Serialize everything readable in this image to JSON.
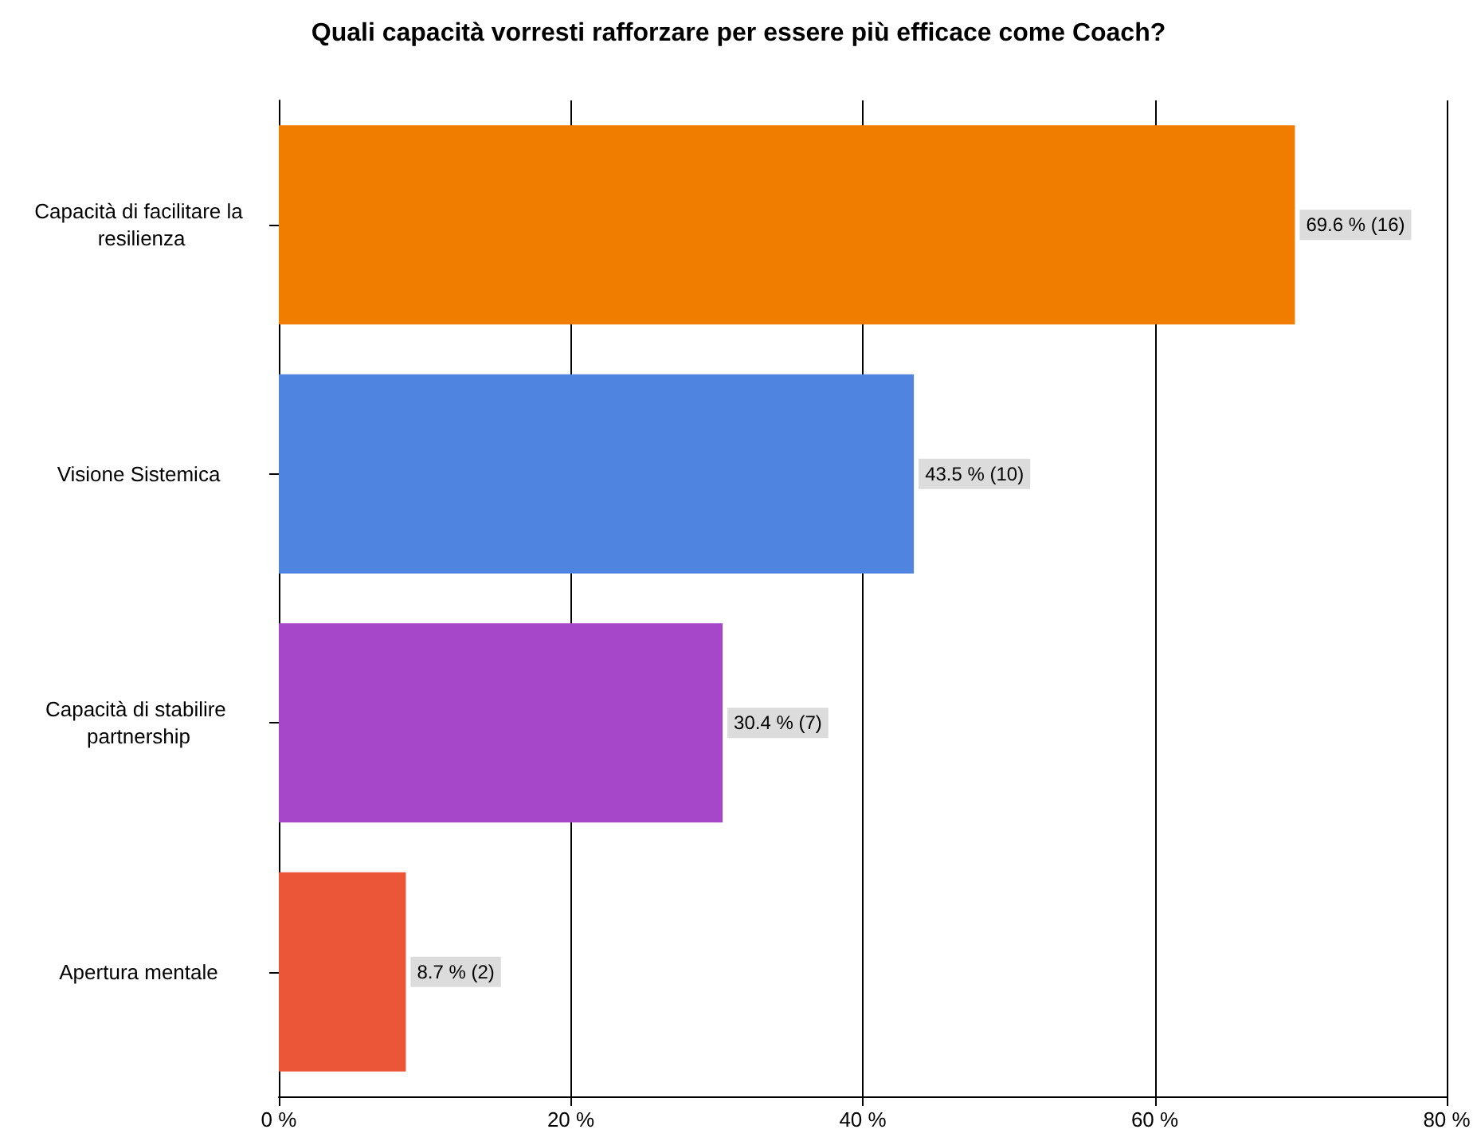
{
  "chart_data": {
    "type": "bar",
    "orientation": "horizontal",
    "title": "Quali capacità vorresti rafforzare per essere più efficace come Coach?",
    "categories": [
      "Capacità di facilitare la resilienza",
      "Visione Sistemica",
      "Capacità di stabilire partnership",
      "Apertura mentale"
    ],
    "values": [
      69.6,
      43.5,
      30.4,
      8.7
    ],
    "value_labels": [
      "69.6 % (16)",
      "43.5 % (10)",
      "30.4 % (7)",
      "8.7 % (2)"
    ],
    "colors": [
      "#f07c00",
      "#4f84e0",
      "#a646c8",
      "#ec5638"
    ],
    "xlim": [
      0,
      80
    ],
    "xticks": [
      {
        "value": 0,
        "label": "0 %"
      },
      {
        "value": 20,
        "label": "20 %"
      },
      {
        "value": 40,
        "label": "40 %"
      },
      {
        "value": 60,
        "label": "60 %"
      },
      {
        "value": 80,
        "label": "80 %"
      }
    ],
    "grid": "x"
  }
}
